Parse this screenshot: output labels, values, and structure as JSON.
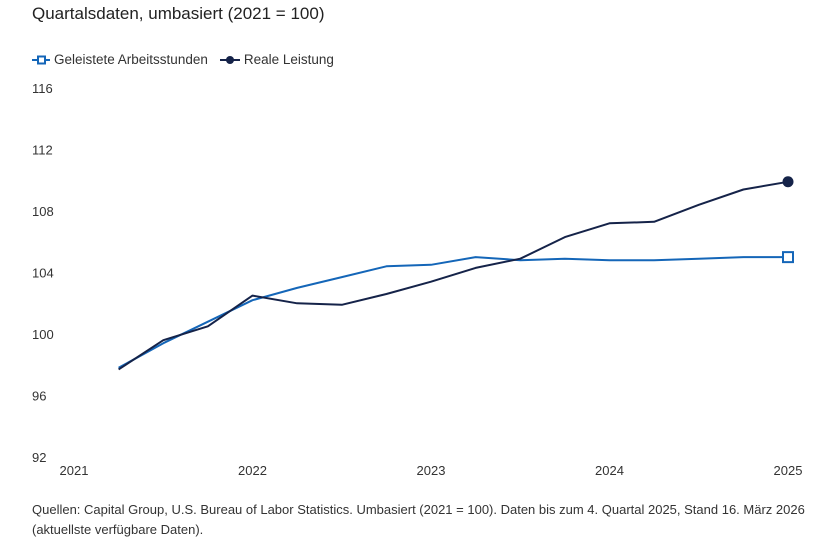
{
  "chart_data": {
    "type": "line",
    "title": "Quartalsdaten, umbasiert (2021 = 100)",
    "xlabel": "",
    "ylabel": "",
    "ylim": [
      92,
      116
    ],
    "yticks": [
      116,
      112,
      108,
      104,
      100,
      96,
      92
    ],
    "xlim": [
      2021.0,
      2025.0
    ],
    "xticks": [
      "2021",
      "2022",
      "2023",
      "2024",
      "2025"
    ],
    "grid": false,
    "legend_position": "top-left",
    "x": [
      2021.25,
      2021.5,
      2021.75,
      2022.0,
      2022.25,
      2022.5,
      2022.75,
      2023.0,
      2023.25,
      2023.5,
      2023.75,
      2024.0,
      2024.25,
      2024.5,
      2024.75,
      2025.0
    ],
    "series": [
      {
        "name": "Geleistete Arbeitsstunden",
        "color": "#1466b8",
        "marker": "square",
        "values": [
          97.8,
          99.4,
          100.8,
          102.2,
          103.0,
          103.7,
          104.4,
          104.5,
          105.0,
          104.8,
          104.9,
          104.8,
          104.8,
          104.9,
          105.0,
          105.0
        ]
      },
      {
        "name": "Reale Leistung",
        "color": "#152349",
        "marker": "circle",
        "values": [
          97.7,
          99.6,
          100.5,
          102.5,
          102.0,
          101.9,
          102.6,
          103.4,
          104.3,
          104.9,
          106.3,
          107.2,
          107.3,
          108.4,
          109.4,
          109.9
        ]
      }
    ]
  },
  "source_note": "Quellen: Capital Group, U.S. Bureau of Labor Statistics. Umbasiert (2021 = 100). Daten bis zum 4. Quartal 2025, Stand 16. März 2026 (aktuellste verfügbare Daten)."
}
